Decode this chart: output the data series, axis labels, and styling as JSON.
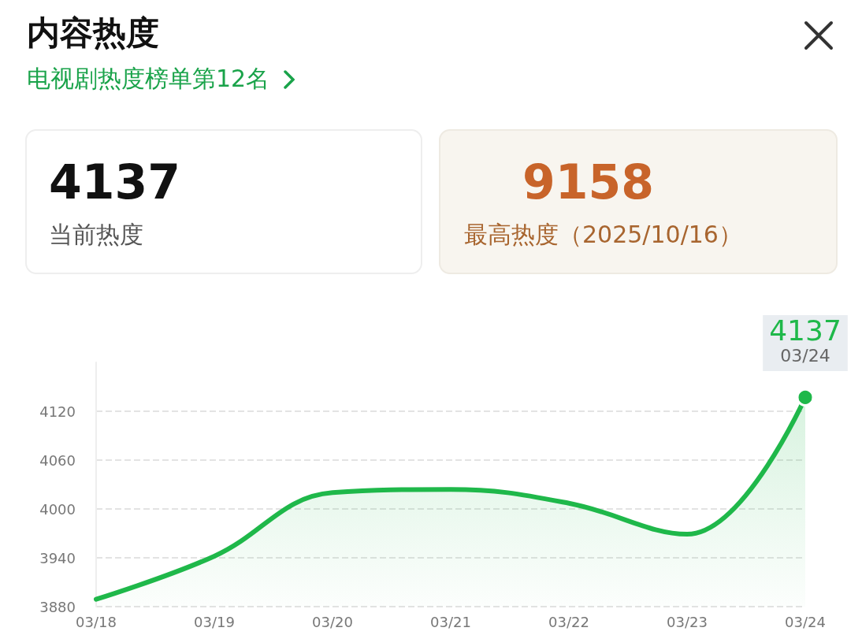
{
  "chart_data": {
    "type": "area",
    "title": "内容热度",
    "subtitle": "电视剧热度榜单第12名",
    "annotations": [
      "4137",
      "当前热度",
      "9158",
      "最高热度（2025/10/16）"
    ],
    "categories": [
      "03/18",
      "03/19",
      "03/20",
      "03/21",
      "03/22",
      "03/23",
      "03/24"
    ],
    "series": [
      {
        "color": "#1fb84a",
        "values": [
          3889,
          3942,
          4020,
          4024,
          4007,
          3969,
          4137
        ],
        "value_labels": [
          null,
          null,
          null,
          null,
          null,
          null,
          "4137"
        ]
      }
    ],
    "ylim": [
      3880,
      4180
    ],
    "yticks": [
      3880,
      3940,
      4000,
      4060,
      4120
    ],
    "grid": "y",
    "marker": "none",
    "line_style": "solid"
  }
}
